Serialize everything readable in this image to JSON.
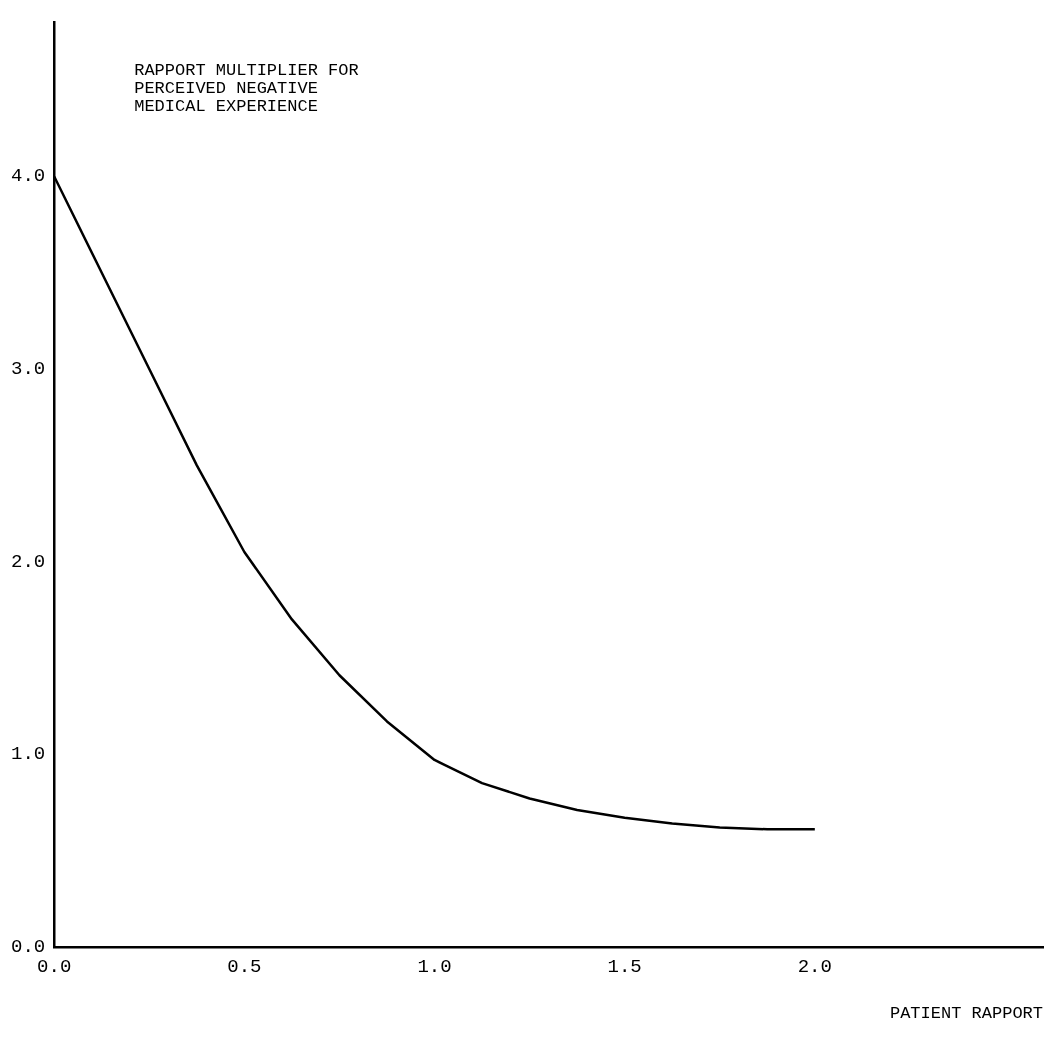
{
  "chart_data": {
    "type": "line",
    "title": "RAPPORT MULTIPLIER FOR\nPERCEIVED NEGATIVE\nMEDICAL EXPERIENCE",
    "xlabel": "PATIENT RAPPORT",
    "x": [
      0,
      0.125,
      0.25,
      0.375,
      0.5,
      0.625,
      0.75,
      0.875,
      1.0,
      1.125,
      1.25,
      1.375,
      1.5,
      1.625,
      1.75,
      1.875,
      2.0
    ],
    "series": [
      {
        "color": "#000000",
        "values": [
          4.0,
          3.5,
          3.0,
          2.5,
          2.05,
          1.7,
          1.41,
          1.17,
          0.97,
          0.85,
          0.77,
          0.71,
          0.67,
          0.64,
          0.62,
          0.61,
          0.61
        ]
      }
    ],
    "xlim": [
      0,
      2.6
    ],
    "xticks": [
      {
        "value": 0,
        "label": "0.0"
      },
      {
        "value": 0.5,
        "label": "0.5"
      },
      {
        "value": 1,
        "label": "1.0"
      },
      {
        "value": 1.5,
        "label": "1.5"
      },
      {
        "value": 2,
        "label": "2.0"
      }
    ],
    "ylim": [
      0,
      4.8
    ],
    "yticks": [
      {
        "value": 0,
        "label": "0.0"
      },
      {
        "value": 1,
        "label": "1.0"
      },
      {
        "value": 2,
        "label": "2.0"
      },
      {
        "value": 3,
        "label": "3.0"
      },
      {
        "value": 4,
        "label": "4.0"
      }
    ],
    "grid": false,
    "legend": false,
    "marker": "none",
    "line_style": "solid"
  }
}
